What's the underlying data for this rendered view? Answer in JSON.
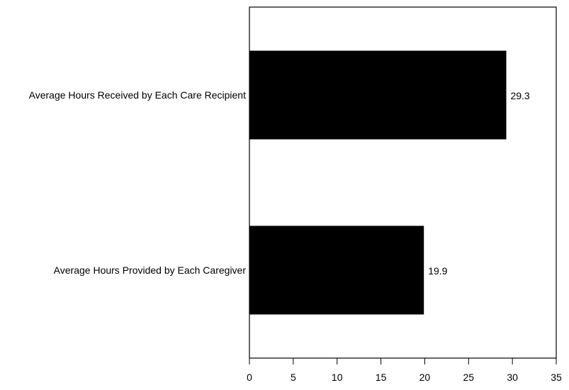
{
  "chart_data": {
    "type": "bar",
    "orientation": "horizontal",
    "title": "",
    "xlabel": "",
    "ylabel": "",
    "categories": [
      "Average Hours Received by Each Care Recipient",
      "Average Hours Provided by Each Caregiver"
    ],
    "values": [
      29.3,
      19.9
    ],
    "value_labels": [
      "29.3",
      "19.9"
    ],
    "xlim": [
      0,
      35
    ],
    "xticks": [
      0,
      5,
      10,
      15,
      20,
      25,
      30,
      35
    ],
    "xtick_labels": [
      "0",
      "5",
      "10",
      "15",
      "20",
      "25",
      "30",
      "35"
    ],
    "grid": false,
    "legend": "none",
    "bar_color": "#000000"
  }
}
